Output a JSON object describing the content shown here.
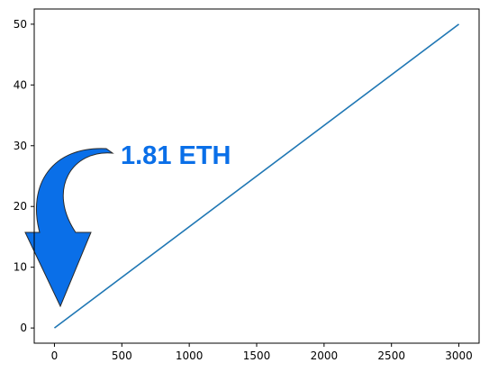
{
  "chart_data": {
    "type": "line",
    "title": "",
    "xlabel": "",
    "ylabel": "",
    "xlim": [
      -150,
      3150
    ],
    "ylim": [
      -2.5,
      52.5
    ],
    "x_ticks": [
      0,
      500,
      1000,
      1500,
      2000,
      2500,
      3000
    ],
    "y_ticks": [
      0,
      10,
      20,
      30,
      40,
      50
    ],
    "grid": false,
    "legend": "none",
    "series": [
      {
        "x": [
          0,
          3000
        ],
        "y": [
          0,
          50
        ],
        "color": "#1f77b4"
      }
    ],
    "annotation": {
      "text": "1.81 ETH",
      "color": "#0a6fe8",
      "arrow_color": "#0a6fe8",
      "arrow_icon": "curved-down-arrow-icon"
    }
  }
}
